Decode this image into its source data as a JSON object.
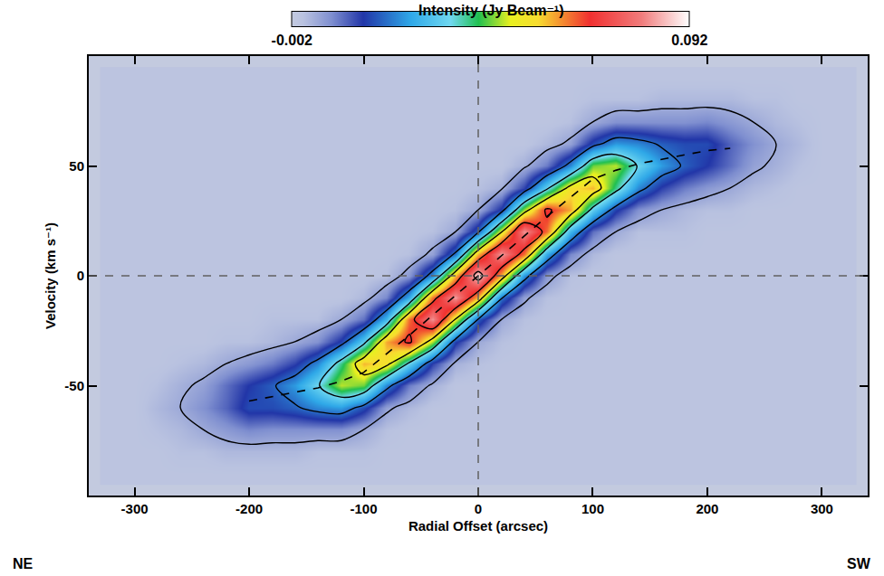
{
  "chart_data": {
    "type": "heatmap",
    "xlabel": "Radial Offset (arcsec)",
    "ylabel": "Velocity (km s⁻¹)",
    "xlim": [
      -340,
      340
    ],
    "ylim": [
      -100,
      100
    ],
    "xticks": [
      -300,
      -200,
      -100,
      0,
      100,
      200,
      300
    ],
    "yticks": [
      -50,
      0,
      50
    ],
    "grid": false,
    "heatmap": {
      "x": [
        -320,
        -300,
        -280,
        -260,
        -240,
        -220,
        -200,
        -180,
        -160,
        -140,
        -120,
        -100,
        -80,
        -60,
        -40,
        -20,
        0,
        20,
        40,
        60,
        80,
        100,
        120,
        140,
        160,
        180,
        200,
        220,
        240,
        260,
        280,
        300,
        320
      ],
      "y": [
        -90,
        -80,
        -70,
        -60,
        -50,
        -40,
        -30,
        -20,
        -10,
        0,
        10,
        20,
        30,
        40,
        50,
        60,
        70,
        80,
        90
      ],
      "columns": [
        [
          0,
          0,
          0,
          0,
          0,
          0,
          0,
          0,
          0,
          0,
          0,
          0,
          0,
          0,
          0,
          0,
          0,
          0,
          0
        ],
        [
          0,
          0,
          0,
          0,
          0,
          0,
          0,
          0,
          0,
          0,
          0,
          0,
          0,
          0,
          0,
          0,
          0,
          0,
          0
        ],
        [
          0,
          0,
          0.001,
          0.002,
          0.001,
          0,
          0,
          0,
          0,
          0,
          0,
          0,
          0,
          0,
          0,
          0,
          0,
          0,
          0
        ],
        [
          0,
          0.001,
          0.002,
          0.004,
          0.003,
          0.001,
          0,
          0,
          0,
          0,
          0,
          0,
          0,
          0,
          0,
          0,
          0,
          0,
          0
        ],
        [
          0,
          0.001,
          0.004,
          0.007,
          0.005,
          0.002,
          0,
          0,
          0,
          0,
          0,
          0,
          0,
          0,
          0,
          0,
          0,
          0,
          0
        ],
        [
          0,
          0.002,
          0.006,
          0.011,
          0.01,
          0.004,
          0.001,
          0,
          0,
          0,
          0,
          0,
          0,
          0,
          0,
          0,
          0,
          0,
          0
        ],
        [
          0,
          0.002,
          0.008,
          0.017,
          0.015,
          0.006,
          0.001,
          0,
          0,
          0,
          0,
          0,
          0,
          0,
          0,
          0,
          0,
          0,
          0
        ],
        [
          0,
          0.002,
          0.007,
          0.017,
          0.019,
          0.009,
          0.002,
          0.001,
          0,
          0,
          0,
          0,
          0,
          0,
          0,
          0,
          0,
          0,
          0
        ],
        [
          0,
          0.002,
          0.007,
          0.019,
          0.025,
          0.014,
          0.004,
          0.001,
          0,
          0,
          0,
          0,
          0,
          0,
          0,
          0,
          0,
          0,
          0
        ],
        [
          0,
          0.001,
          0.007,
          0.023,
          0.035,
          0.023,
          0.007,
          0.001,
          0,
          0,
          0,
          0,
          0,
          0,
          0,
          0,
          0,
          0,
          0
        ],
        [
          0,
          0.001,
          0.007,
          0.025,
          0.048,
          0.04,
          0.016,
          0.004,
          0,
          0,
          0,
          0,
          0,
          0,
          0,
          0,
          0,
          0,
          0
        ],
        [
          0,
          0.001,
          0.004,
          0.017,
          0.045,
          0.059,
          0.033,
          0.01,
          0.002,
          0,
          0,
          0,
          0,
          0,
          0,
          0,
          0,
          0,
          0
        ],
        [
          0,
          0,
          0.001,
          0.005,
          0.023,
          0.055,
          0.06,
          0.029,
          0.008,
          0.001,
          0,
          0,
          0,
          0,
          0,
          0,
          0,
          0,
          0
        ],
        [
          0,
          0,
          0,
          0.002,
          0.009,
          0.034,
          0.07,
          0.064,
          0.027,
          0.006,
          0.001,
          0,
          0,
          0,
          0,
          0,
          0,
          0,
          0
        ],
        [
          0,
          0,
          0,
          0,
          0.003,
          0.014,
          0.047,
          0.083,
          0.064,
          0.024,
          0.005,
          0.001,
          0,
          0,
          0,
          0,
          0,
          0,
          0
        ],
        [
          0,
          0,
          0,
          0,
          0,
          0.003,
          0.016,
          0.051,
          0.084,
          0.059,
          0.021,
          0.004,
          0.001,
          0,
          0,
          0,
          0,
          0,
          0
        ],
        [
          0,
          0,
          0,
          0,
          0,
          0.001,
          0.004,
          0.019,
          0.059,
          0.09,
          0.059,
          0.019,
          0.004,
          0.001,
          0,
          0,
          0,
          0,
          0
        ],
        [
          0,
          0,
          0,
          0,
          0,
          0,
          0.001,
          0.004,
          0.021,
          0.059,
          0.084,
          0.051,
          0.016,
          0.003,
          0,
          0,
          0,
          0,
          0
        ],
        [
          0,
          0,
          0,
          0,
          0,
          0,
          0,
          0.001,
          0.005,
          0.024,
          0.064,
          0.083,
          0.047,
          0.014,
          0.003,
          0,
          0,
          0,
          0
        ],
        [
          0,
          0,
          0,
          0,
          0,
          0,
          0,
          0,
          0.001,
          0.006,
          0.027,
          0.064,
          0.07,
          0.034,
          0.009,
          0.002,
          0,
          0,
          0
        ],
        [
          0,
          0,
          0,
          0,
          0,
          0,
          0,
          0,
          0,
          0.001,
          0.008,
          0.029,
          0.06,
          0.055,
          0.023,
          0.005,
          0.001,
          0,
          0
        ],
        [
          0,
          0,
          0,
          0,
          0,
          0,
          0,
          0,
          0,
          0,
          0.002,
          0.01,
          0.033,
          0.059,
          0.045,
          0.017,
          0.004,
          0.001,
          0
        ],
        [
          0,
          0,
          0,
          0,
          0,
          0,
          0,
          0,
          0,
          0,
          0,
          0.004,
          0.016,
          0.04,
          0.048,
          0.025,
          0.007,
          0.001,
          0
        ],
        [
          0,
          0,
          0,
          0,
          0,
          0,
          0,
          0,
          0,
          0,
          0,
          0.001,
          0.007,
          0.023,
          0.035,
          0.023,
          0.007,
          0.001,
          0
        ],
        [
          0,
          0,
          0,
          0,
          0,
          0,
          0,
          0,
          0,
          0,
          0,
          0.001,
          0.004,
          0.014,
          0.025,
          0.019,
          0.007,
          0.002,
          0
        ],
        [
          0,
          0,
          0,
          0,
          0,
          0,
          0,
          0,
          0,
          0,
          0,
          0.001,
          0.002,
          0.009,
          0.019,
          0.017,
          0.007,
          0.002,
          0
        ],
        [
          0,
          0,
          0,
          0,
          0,
          0,
          0,
          0,
          0,
          0,
          0,
          0,
          0.001,
          0.006,
          0.015,
          0.017,
          0.008,
          0.002,
          0
        ],
        [
          0,
          0,
          0,
          0,
          0,
          0,
          0,
          0,
          0,
          0,
          0,
          0,
          0.001,
          0.004,
          0.01,
          0.011,
          0.006,
          0.002,
          0
        ],
        [
          0,
          0,
          0,
          0,
          0,
          0,
          0,
          0,
          0,
          0,
          0,
          0,
          0,
          0.002,
          0.005,
          0.007,
          0.004,
          0.001,
          0
        ],
        [
          0,
          0,
          0,
          0,
          0,
          0,
          0,
          0,
          0,
          0,
          0,
          0,
          0,
          0.001,
          0.003,
          0.004,
          0.002,
          0.001,
          0
        ],
        [
          0,
          0,
          0,
          0,
          0,
          0,
          0,
          0,
          0,
          0,
          0,
          0,
          0,
          0,
          0.001,
          0.002,
          0.001,
          0,
          0
        ],
        [
          0,
          0,
          0,
          0,
          0,
          0,
          0,
          0,
          0,
          0,
          0,
          0,
          0,
          0,
          0,
          0,
          0,
          0,
          0
        ],
        [
          0,
          0,
          0,
          0,
          0,
          0,
          0,
          0,
          0,
          0,
          0,
          0,
          0,
          0,
          0,
          0,
          0,
          0,
          0
        ]
      ]
    },
    "colorbar": {
      "title": "Intensity (Jy Beam⁻¹)",
      "range": [
        -0.002,
        0.092
      ],
      "ticks": [
        -0.002,
        0.092
      ]
    },
    "contour_levels": {
      "start": 0.004,
      "end": 0.084,
      "step": 0.016
    },
    "rotation_curve": {
      "x": [
        -200,
        -180,
        -160,
        -140,
        -120,
        -100,
        -60,
        -20,
        0,
        20,
        60,
        100,
        120,
        140,
        160,
        180,
        200,
        220
      ],
      "values": [
        -57,
        -55,
        -53,
        -51,
        -48,
        -44,
        -27,
        -9,
        0,
        9,
        27,
        44,
        48,
        51,
        53,
        55,
        57,
        58
      ],
      "line_style": "dashed",
      "color": "#000000"
    },
    "reference_lines": {
      "x": 0,
      "y": 0,
      "line_style": "dashed"
    },
    "direction_labels": {
      "left": "NE",
      "right": "SW"
    }
  }
}
